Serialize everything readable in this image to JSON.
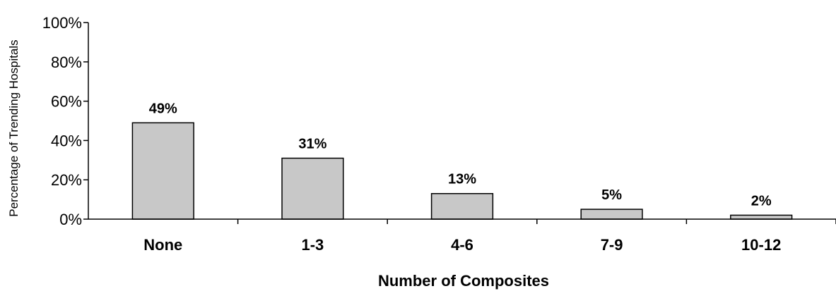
{
  "chart_data": {
    "type": "bar",
    "categories": [
      "None",
      "1-3",
      "4-6",
      "7-9",
      "10-12"
    ],
    "values": [
      49,
      31,
      13,
      5,
      2
    ],
    "data_labels": [
      "49%",
      "31%",
      "13%",
      "5%",
      "2%"
    ],
    "title": "",
    "xlabel": "Number of Composites",
    "ylabel": "Percentage of Trending Hospitals",
    "ylim": [
      0,
      100
    ],
    "yticks": [
      0,
      20,
      40,
      60,
      80,
      100
    ],
    "ytick_labels": [
      "0%",
      "20%",
      "40%",
      "60%",
      "80%",
      "100%"
    ],
    "grid": false,
    "legend": "none",
    "bar_color": "#c8c8c8",
    "bar_edge_color": "#000000"
  }
}
